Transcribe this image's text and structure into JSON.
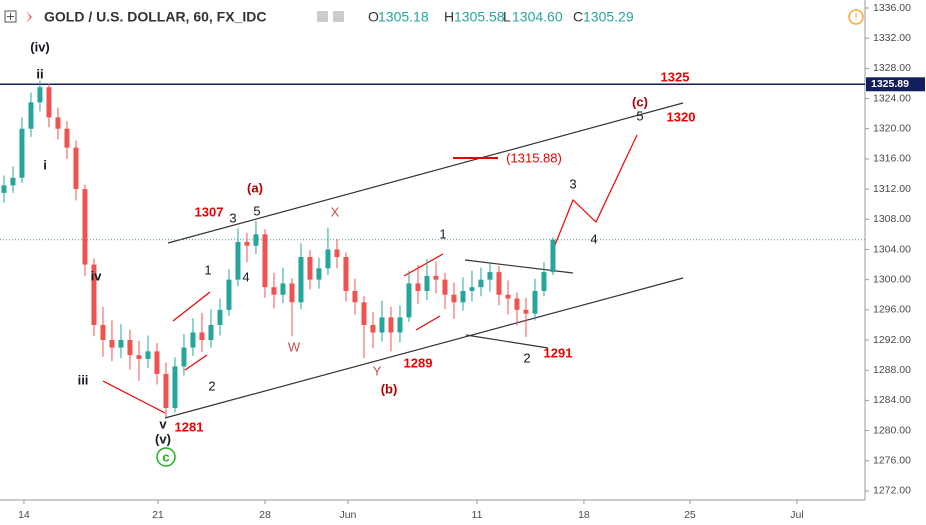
{
  "chart_data": {
    "type": "candlestick",
    "title": "GOLD / U.S. DOLLAR, 60, FX_IDC",
    "header": [
      {
        "label": "O",
        "value": "1305.18"
      },
      {
        "label": "H",
        "value": "1305.58"
      },
      {
        "label": "L",
        "value": "1304.60"
      },
      {
        "label": "C",
        "value": "1305.29"
      }
    ],
    "open": [
      1311.5,
      1312.5,
      1313.5,
      1320,
      1323.5,
      1325.5,
      1321.5,
      1320,
      1317.5,
      1312,
      1302,
      1294,
      1292,
      1291,
      1292,
      1290,
      1289.5,
      1290.5,
      1287.5,
      1283,
      1288.5,
      1291,
      1293,
      1292,
      1294,
      1296,
      1300,
      1305,
      1304.5,
      1306,
      1299,
      1298,
      1299.5,
      1297,
      1303,
      1300,
      1301.5,
      1304,
      1303,
      1298.5,
      1297,
      1294,
      1293,
      1295,
      1293,
      1295,
      1299.5,
      1298.5,
      1300.5,
      1300,
      1298,
      1297,
      1298.5,
      1299,
      1300,
      1301,
      1298,
      1297.5,
      1296,
      1295.5,
      1298.5,
      1301
    ],
    "high": [
      1313.8,
      1315,
      1321.5,
      1324.8,
      1326.4,
      1326,
      1322.8,
      1321,
      1318.4,
      1312.6,
      1302.8,
      1296.4,
      1294.6,
      1294.1,
      1293.4,
      1291.9,
      1292.6,
      1291.6,
      1289,
      1289.7,
      1292.8,
      1294.9,
      1295.6,
      1296.1,
      1297.5,
      1301.4,
      1306.8,
      1306.2,
      1307.8,
      1306.7,
      1300.9,
      1301.6,
      1300.2,
      1304.8,
      1303.9,
      1302.9,
      1306.9,
      1305.4,
      1303.6,
      1300.1,
      1297.8,
      1295.7,
      1297.2,
      1296.4,
      1296.6,
      1301.2,
      1301.9,
      1302.7,
      1302.4,
      1300.9,
      1299.6,
      1300.3,
      1301.2,
      1301.6,
      1302.1,
      1301.8,
      1299.9,
      1298.3,
      1297.6,
      1300.1,
      1302.3,
      1305.6
    ],
    "low": [
      1310.2,
      1311.5,
      1312.8,
      1318.9,
      1322.3,
      1320.2,
      1318.6,
      1316,
      1310.5,
      1300.5,
      1292.5,
      1289.8,
      1289.2,
      1289.6,
      1288.1,
      1286.6,
      1288.3,
      1286.1,
      1281.8,
      1282.4,
      1287.3,
      1289.9,
      1290.4,
      1291,
      1292.6,
      1295.2,
      1299.1,
      1302.3,
      1303.4,
      1297.6,
      1296.2,
      1296.9,
      1292.5,
      1296.1,
      1298.7,
      1298.8,
      1300.6,
      1301.5,
      1297.1,
      1295.4,
      1289.6,
      1290.9,
      1291.8,
      1290.5,
      1291.7,
      1294.4,
      1296.8,
      1297.3,
      1298.2,
      1296.1,
      1294.8,
      1295.9,
      1297.1,
      1297.8,
      1298.4,
      1296.6,
      1295.4,
      1293.9,
      1292.4,
      1294.6,
      1297.8,
      1300.6
    ],
    "close": [
      1312.5,
      1313.5,
      1320,
      1323.5,
      1325.5,
      1321.5,
      1320,
      1317.5,
      1312,
      1302,
      1294,
      1292,
      1291,
      1292,
      1290,
      1289.5,
      1290.5,
      1287.5,
      1283,
      1288.5,
      1291,
      1293,
      1292,
      1294,
      1296,
      1300,
      1305,
      1304.5,
      1306,
      1299,
      1298,
      1299.5,
      1297,
      1303,
      1300,
      1301.5,
      1304,
      1303,
      1298.5,
      1297,
      1294,
      1293,
      1295,
      1293,
      1295,
      1299.5,
      1298.5,
      1300.5,
      1300,
      1298,
      1297,
      1298.5,
      1299,
      1300,
      1301,
      1298,
      1297.5,
      1296,
      1295.5,
      1298.5,
      1301,
      1305.3
    ],
    "up_color": "#26a69a",
    "down_color": "#ef5350",
    "ylim": [
      1270.8,
      1337.06
    ],
    "yticks": [
      {
        "value": 1336,
        "label": "1336.00"
      },
      {
        "value": 1332,
        "label": "1332.00"
      },
      {
        "value": 1328,
        "label": "1328.00"
      },
      {
        "value": 1324,
        "label": "1324.00"
      },
      {
        "value": 1320,
        "label": "1320.00"
      },
      {
        "value": 1316,
        "label": "1316.00"
      },
      {
        "value": 1312,
        "label": "1312.00"
      },
      {
        "value": 1308,
        "label": "1308.00"
      },
      {
        "value": 1304,
        "label": "1304.00"
      },
      {
        "value": 1300,
        "label": "1300.00"
      },
      {
        "value": 1296,
        "label": "1296.00"
      },
      {
        "value": 1292,
        "label": "1292.00"
      },
      {
        "value": 1288,
        "label": "1288.00"
      },
      {
        "value": 1284,
        "label": "1284.00"
      },
      {
        "value": 1280,
        "label": "1280.00"
      },
      {
        "value": 1276,
        "label": "1276.00"
      },
      {
        "value": 1272,
        "label": "1272.00"
      }
    ],
    "xlim": [
      -0.44,
      95.67
    ],
    "xticks": [
      {
        "value": 2.22,
        "label": "14"
      },
      {
        "value": 17.11,
        "label": "21"
      },
      {
        "value": 29,
        "label": "28"
      },
      {
        "value": 38.22,
        "label": "Jun"
      },
      {
        "value": 52.56,
        "label": "11"
      },
      {
        "value": 64.44,
        "label": "18"
      },
      {
        "value": 76.22,
        "label": "25"
      },
      {
        "value": 88.11,
        "label": "Jul"
      }
    ],
    "hline": {
      "value": 1325.89,
      "label": "1325.89",
      "color": "#131f5c"
    },
    "price_line": {
      "value": 1305.29,
      "color": "#26a69a"
    },
    "annotations": [
      "(iv)",
      "ii",
      "i",
      "iv",
      "iii",
      "v",
      "(v)",
      "c",
      "1281",
      "(a)",
      "1307",
      "3",
      "5",
      "1",
      "4",
      "2",
      "W",
      "X",
      "Y",
      "(b)",
      "1289",
      "1",
      "2",
      "1291",
      "3",
      "4",
      "5",
      "(c)",
      "1325",
      "1320",
      "(1315.88)"
    ]
  }
}
